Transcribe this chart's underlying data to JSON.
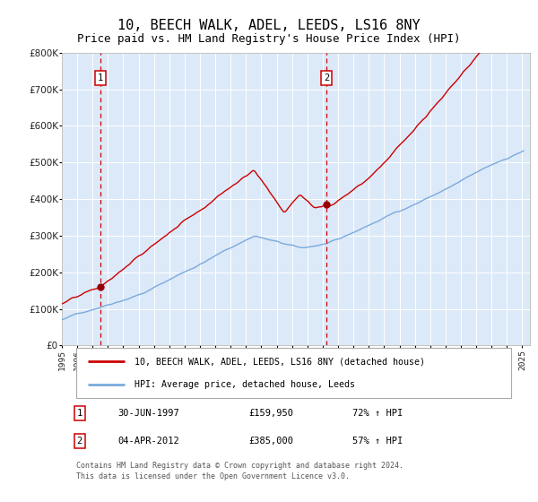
{
  "title": "10, BEECH WALK, ADEL, LEEDS, LS16 8NY",
  "subtitle": "Price paid vs. HM Land Registry's House Price Index (HPI)",
  "title_fontsize": 11,
  "subtitle_fontsize": 9,
  "plot_bg_color": "#dce9f8",
  "grid_color": "#c8d8ee",
  "sale1": {
    "date": 1997.5,
    "price": 159950,
    "label": "1"
  },
  "sale2": {
    "date": 2012.25,
    "price": 385000,
    "label": "2"
  },
  "line1_color": "#cc0000",
  "line2_color": "#7aaadd",
  "marker_color": "#990000",
  "dashed_color": "#cc0000",
  "footnote": "Contains HM Land Registry data © Crown copyright and database right 2024.\nThis data is licensed under the Open Government Licence v3.0.",
  "legend1_label": "10, BEECH WALK, ADEL, LEEDS, LS16 8NY (detached house)",
  "legend2_label": "HPI: Average price, detached house, Leeds",
  "table_rows": [
    {
      "num": "1",
      "date": "30-JUN-1997",
      "price": "£159,950",
      "pct": "72% ↑ HPI"
    },
    {
      "num": "2",
      "date": "04-APR-2012",
      "price": "£385,000",
      "pct": "57% ↑ HPI"
    }
  ]
}
